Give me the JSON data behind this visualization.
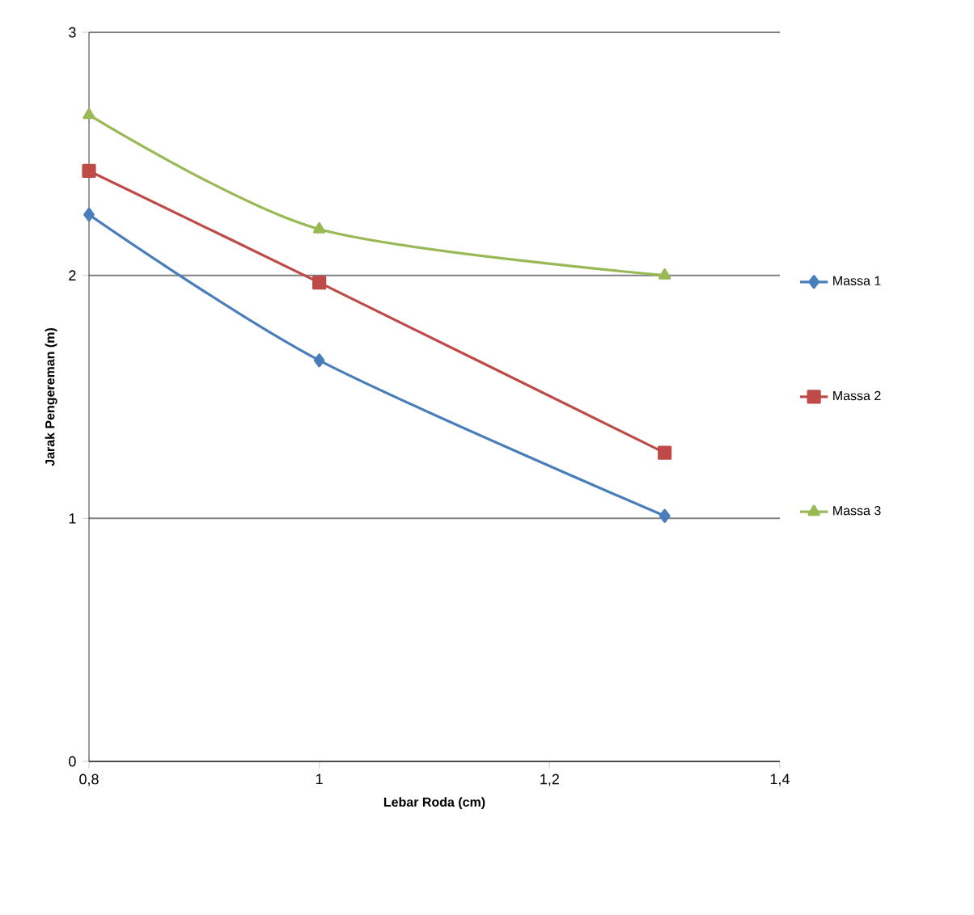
{
  "chart_data": {
    "type": "line",
    "xlabel": "Lebar Roda (cm)",
    "ylabel": "Jarak Pengereman (m)",
    "xlim": [
      0.8,
      1.4
    ],
    "ylim": [
      0,
      3
    ],
    "xticks": [
      {
        "value": 0.8,
        "label": "0,8"
      },
      1,
      {
        "value": 1.2,
        "label": "1,2"
      },
      {
        "value": 1.4,
        "label": "1,4"
      }
    ],
    "yticks": [
      0,
      1,
      2,
      3
    ],
    "grid": "y",
    "legend": "right",
    "series": [
      {
        "name": "Massa 1",
        "color": "#4a7ebb",
        "marker": "diamond",
        "x": [
          0.8,
          1,
          1.3
        ],
        "values": [
          2.25,
          1.65,
          1.01
        ]
      },
      {
        "name": "Massa 2",
        "color": "#be4b48",
        "marker": "square",
        "x": [
          0.8,
          1,
          1.3
        ],
        "values": [
          2.43,
          1.97,
          1.27
        ]
      },
      {
        "name": "Massa 3",
        "color": "#98b954",
        "marker": "triangle",
        "x": [
          0.8,
          1,
          1.3
        ],
        "values": [
          2.66,
          2.19,
          2.0
        ]
      }
    ]
  }
}
